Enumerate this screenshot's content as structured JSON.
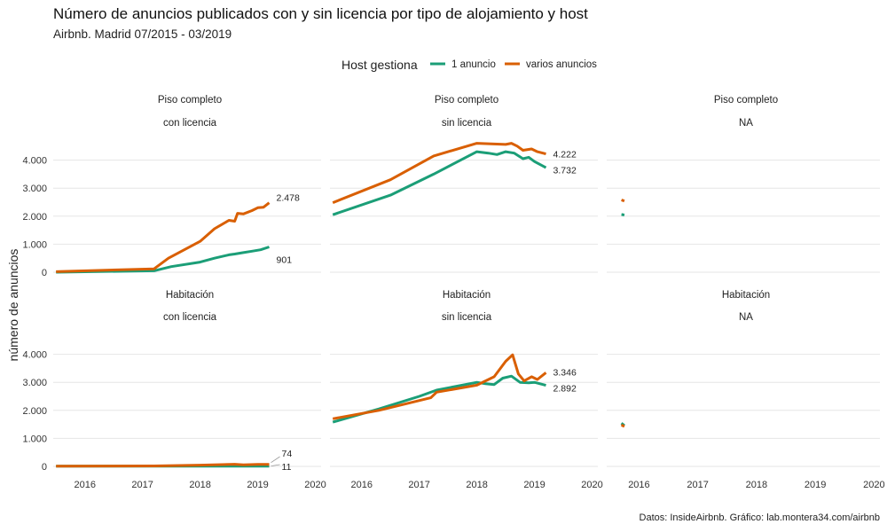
{
  "title": "Número de anuncios publicados con y sin licencia por tipo de alojamiento y host",
  "subtitle": "Airbnb. Madrid 07/2015 - 03/2019",
  "caption": "Datos: InsideAirbnb. Gráfico: lab.montera34.com/airbnb",
  "chart_data": {
    "type": "line",
    "ylabel": "número de anuncios",
    "ylim": [
      0,
      4600
    ],
    "xlim": [
      2015.45,
      2020.1
    ],
    "x_ticks": [
      2016,
      2017,
      2018,
      2019,
      2020
    ],
    "y_ticks": [
      0,
      1000,
      2000,
      3000,
      4000
    ],
    "y_tick_labels": [
      "0",
      "1.000",
      "2.000",
      "3.000",
      "4.000"
    ],
    "grid": "horizontal",
    "legend": {
      "title": "Host gestiona",
      "position": "top",
      "entries": [
        {
          "name": "1 anuncio",
          "color": "#1b9e77"
        },
        {
          "name": "varios anuncios",
          "color": "#d95f02"
        }
      ]
    },
    "panels": [
      {
        "row_label": "Piso completo",
        "col_label": "con licencia",
        "series": [
          {
            "name": "1 anuncio",
            "points": [
              [
                2015.5,
                0
              ],
              [
                2017.2,
                50
              ],
              [
                2017.5,
                200
              ],
              [
                2018.0,
                360
              ],
              [
                2018.25,
                500
              ],
              [
                2018.5,
                620
              ],
              [
                2018.6,
                650
              ],
              [
                2018.75,
                700
              ],
              [
                2018.9,
                750
              ],
              [
                2019.05,
                800
              ],
              [
                2019.2,
                901
              ]
            ]
          },
          {
            "name": "varios anuncios",
            "points": [
              [
                2015.5,
                20
              ],
              [
                2017.2,
                120
              ],
              [
                2017.45,
                500
              ],
              [
                2018.0,
                1100
              ],
              [
                2018.25,
                1550
              ],
              [
                2018.5,
                1850
              ],
              [
                2018.6,
                1820
              ],
              [
                2018.65,
                2100
              ],
              [
                2018.75,
                2080
              ],
              [
                2018.9,
                2200
              ],
              [
                2019.0,
                2300
              ],
              [
                2019.1,
                2320
              ],
              [
                2019.2,
                2478
              ]
            ]
          }
        ],
        "end_labels": [
          {
            "text": "2.478",
            "value": 2478,
            "series": "varios anuncios"
          },
          {
            "text": "901",
            "value": 901,
            "series": "1 anuncio"
          }
        ]
      },
      {
        "row_label": "Piso completo",
        "col_label": "sin licencia",
        "series": [
          {
            "name": "1 anuncio",
            "points": [
              [
                2015.5,
                2050
              ],
              [
                2016.5,
                2750
              ],
              [
                2017.25,
                3500
              ],
              [
                2018.0,
                4300
              ],
              [
                2018.2,
                4250
              ],
              [
                2018.35,
                4200
              ],
              [
                2018.5,
                4300
              ],
              [
                2018.65,
                4250
              ],
              [
                2018.8,
                4050
              ],
              [
                2018.9,
                4100
              ],
              [
                2019.0,
                3950
              ],
              [
                2019.2,
                3732
              ]
            ]
          },
          {
            "name": "varios anuncios",
            "points": [
              [
                2015.5,
                2480
              ],
              [
                2016.5,
                3300
              ],
              [
                2017.25,
                4150
              ],
              [
                2018.0,
                4600
              ],
              [
                2018.5,
                4560
              ],
              [
                2018.6,
                4600
              ],
              [
                2018.7,
                4500
              ],
              [
                2018.8,
                4350
              ],
              [
                2018.95,
                4400
              ],
              [
                2019.05,
                4300
              ],
              [
                2019.2,
                4222
              ]
            ]
          }
        ],
        "end_labels": [
          {
            "text": "4.222",
            "value": 4222,
            "series": "varios anuncios"
          },
          {
            "text": "3.732",
            "value": 3732,
            "series": "1 anuncio"
          }
        ]
      },
      {
        "row_label": "Piso completo",
        "col_label": "NA",
        "series": [
          {
            "name": "1 anuncio",
            "points": [
              [
                2015.7,
                2060
              ],
              [
                2015.75,
                2040
              ]
            ]
          },
          {
            "name": "varios anuncios",
            "points": [
              [
                2015.7,
                2580
              ],
              [
                2015.75,
                2540
              ]
            ]
          }
        ],
        "end_labels": []
      },
      {
        "row_label": "Habitación",
        "col_label": "con licencia",
        "series": [
          {
            "name": "1 anuncio",
            "points": [
              [
                2015.5,
                5
              ],
              [
                2017.0,
                5
              ],
              [
                2018.0,
                8
              ],
              [
                2019.2,
                11
              ]
            ]
          },
          {
            "name": "varios anuncios",
            "points": [
              [
                2015.5,
                10
              ],
              [
                2017.2,
                15
              ],
              [
                2018.0,
                45
              ],
              [
                2018.6,
                75
              ],
              [
                2018.75,
                55
              ],
              [
                2019.0,
                70
              ],
              [
                2019.2,
                74
              ]
            ]
          }
        ],
        "end_labels": [
          {
            "text": "74",
            "value": 74,
            "series": "varios anuncios"
          },
          {
            "text": "11",
            "value": 11,
            "series": "1 anuncio"
          }
        ]
      },
      {
        "row_label": "Habitación",
        "col_label": "sin licencia",
        "series": [
          {
            "name": "1 anuncio",
            "points": [
              [
                2015.5,
                1580
              ],
              [
                2016.3,
                2050
              ],
              [
                2017.0,
                2500
              ],
              [
                2017.3,
                2720
              ],
              [
                2018.0,
                3000
              ],
              [
                2018.15,
                2950
              ],
              [
                2018.3,
                2920
              ],
              [
                2018.45,
                3150
              ],
              [
                2018.6,
                3220
              ],
              [
                2018.75,
                3000
              ],
              [
                2018.9,
                2980
              ],
              [
                2019.0,
                3000
              ],
              [
                2019.2,
                2892
              ]
            ]
          },
          {
            "name": "varios anuncios",
            "points": [
              [
                2015.5,
                1700
              ],
              [
                2016.3,
                2000
              ],
              [
                2017.2,
                2450
              ],
              [
                2017.3,
                2650
              ],
              [
                2018.0,
                2900
              ],
              [
                2018.3,
                3200
              ],
              [
                2018.5,
                3750
              ],
              [
                2018.62,
                3980
              ],
              [
                2018.72,
                3300
              ],
              [
                2018.82,
                3050
              ],
              [
                2018.95,
                3200
              ],
              [
                2019.05,
                3100
              ],
              [
                2019.2,
                3346
              ]
            ]
          }
        ],
        "end_labels": [
          {
            "text": "3.346",
            "value": 3346,
            "series": "varios anuncios"
          },
          {
            "text": "2.892",
            "value": 2892,
            "series": "1 anuncio"
          }
        ]
      },
      {
        "row_label": "Habitación",
        "col_label": "NA",
        "series": [
          {
            "name": "1 anuncio",
            "points": [
              [
                2015.7,
                1540
              ],
              [
                2015.75,
                1460
              ]
            ]
          },
          {
            "name": "varios anuncios",
            "points": [
              [
                2015.7,
                1480
              ],
              [
                2015.75,
                1420
              ]
            ]
          }
        ],
        "end_labels": []
      }
    ]
  }
}
